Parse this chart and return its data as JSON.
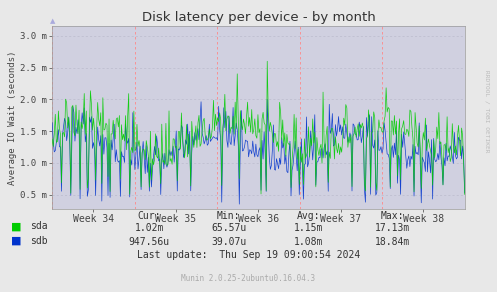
{
  "title": "Disk latency per device - by month",
  "ylabel": "Average IO Wait (seconds)",
  "bg_color": "#e8e8e8",
  "plot_bg_color": "#d0d0e0",
  "sda_color": "#00cc00",
  "sdb_color": "#0033cc",
  "ytick_labels": [
    "0.5 m",
    "1.0 m",
    "1.5 m",
    "2.0 m",
    "2.5 m",
    "3.0 m"
  ],
  "ytick_vals": [
    0.5,
    1.0,
    1.5,
    2.0,
    2.5,
    3.0
  ],
  "ylim": [
    0.28,
    3.15
  ],
  "week_labels": [
    "Week 34",
    "Week 35",
    "Week 36",
    "Week 37",
    "Week 38"
  ],
  "right_label": "RRDTOOL / TOBI OETIKER",
  "stats_header": [
    "Cur:",
    "Min:",
    "Avg:",
    "Max:"
  ],
  "stats_sda": [
    "1.02m",
    "65.57u",
    "1.15m",
    "17.13m"
  ],
  "stats_sdb": [
    "947.56u",
    "39.07u",
    "1.08m",
    "18.84m"
  ],
  "last_update": "Last update:  Thu Sep 19 09:00:54 2024",
  "munin_version": "Munin 2.0.25-2ubuntu0.16.04.3",
  "n_points": 400,
  "seed": 42
}
